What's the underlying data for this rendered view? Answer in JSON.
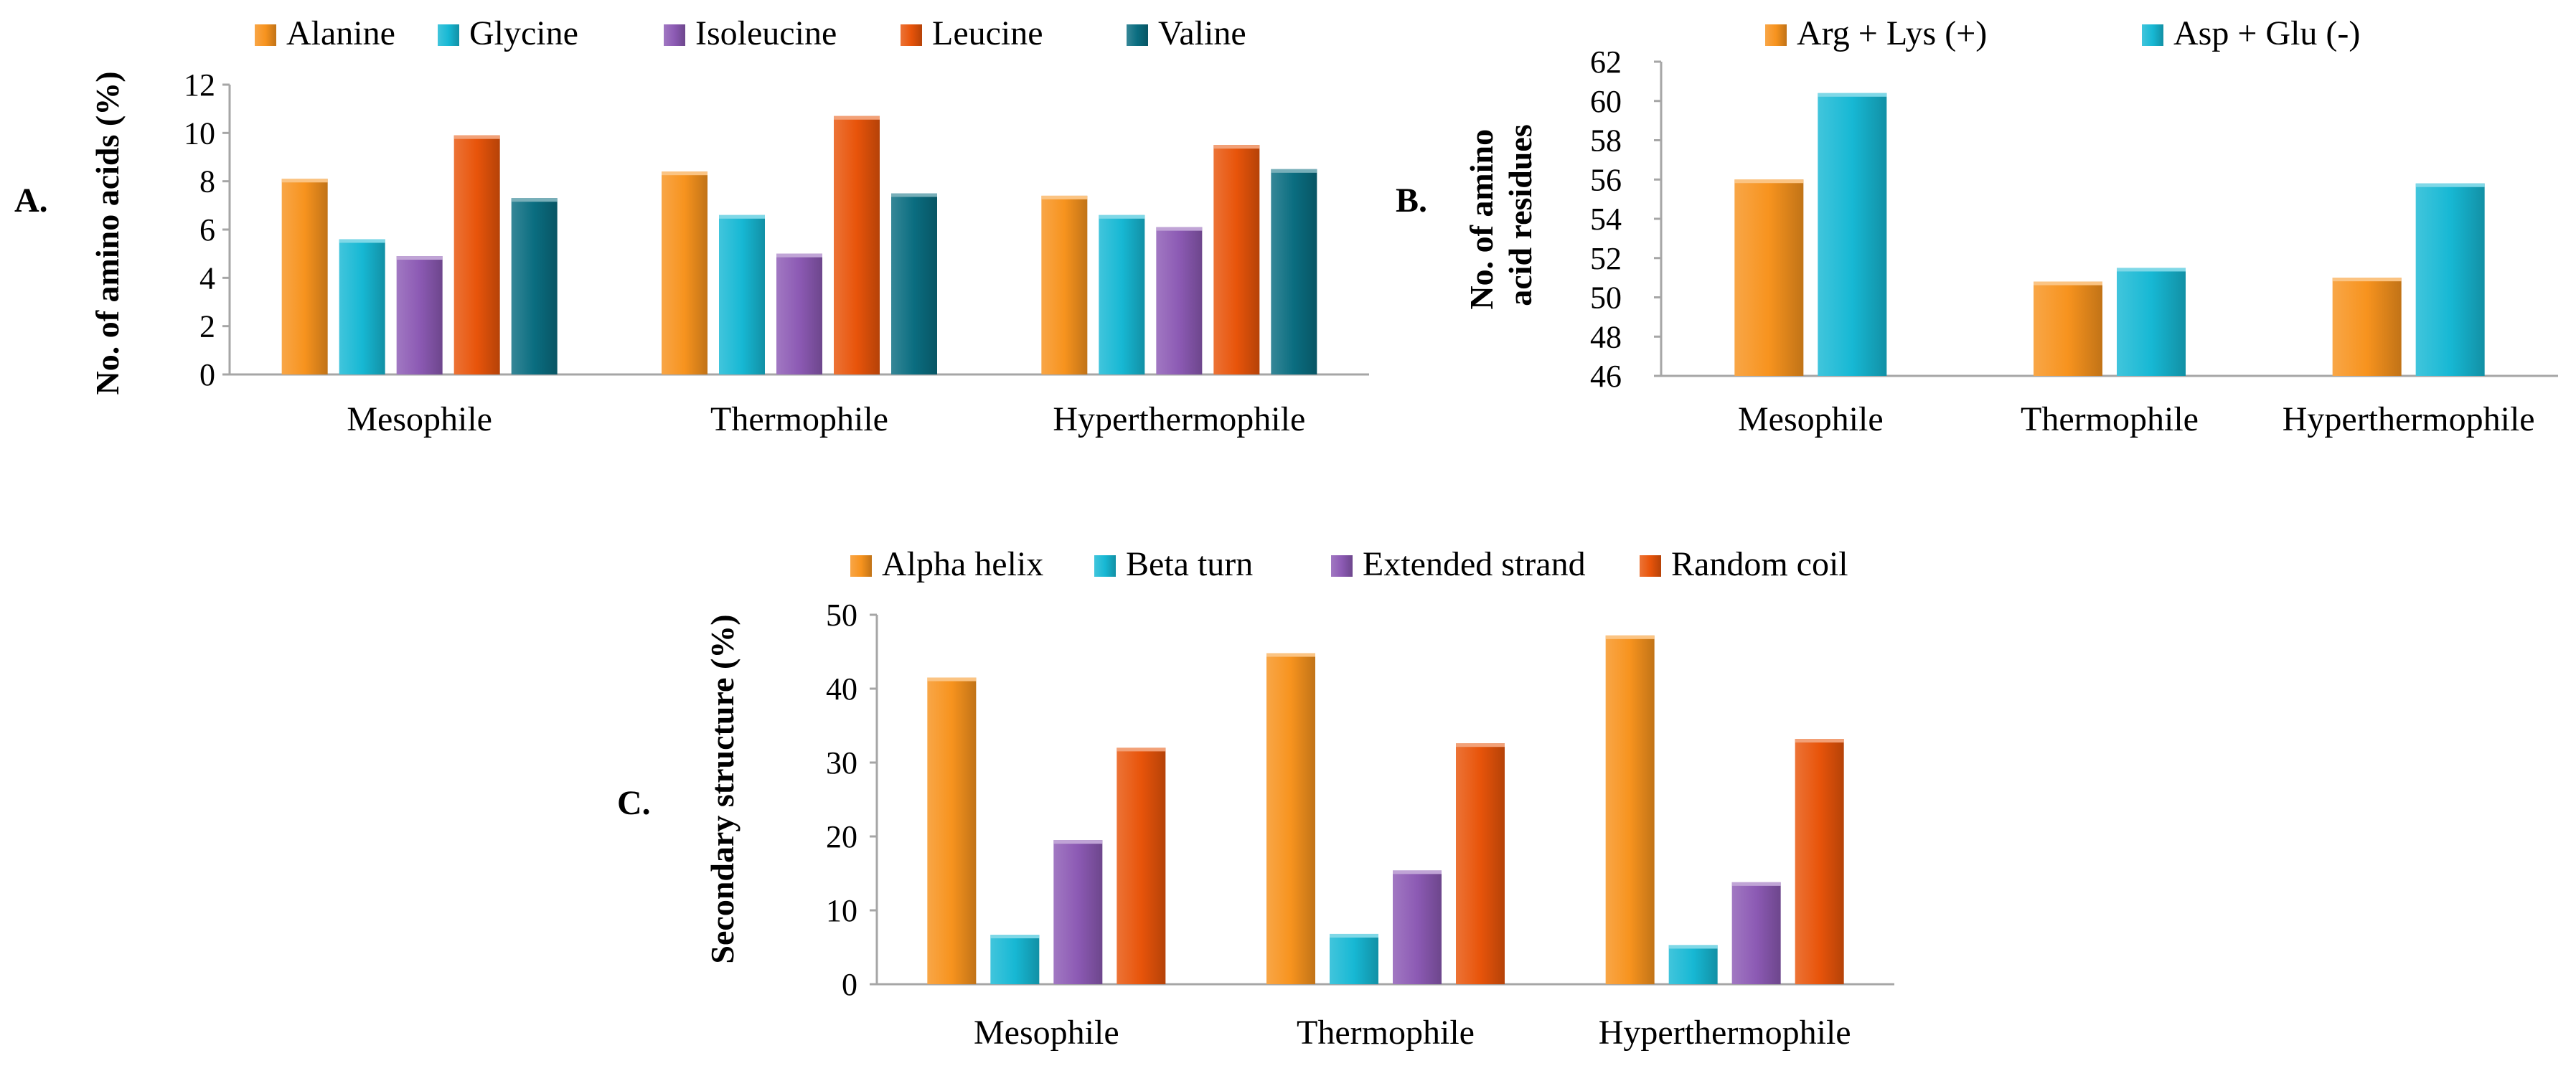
{
  "chart_data": [
    {
      "id": "A",
      "panel_label": "A.",
      "type": "bar",
      "ylabel": "No. of amino acids (%)",
      "categories": [
        "Mesophile",
        "Thermophile",
        "Hyperthermophile"
      ],
      "ylim": [
        0,
        12
      ],
      "yticks": [
        0,
        2,
        4,
        6,
        8,
        10,
        12
      ],
      "legend_position": "top",
      "series": [
        {
          "name": "Alanine",
          "values": [
            8.1,
            8.4,
            7.4
          ]
        },
        {
          "name": "Glycine",
          "values": [
            5.6,
            6.6,
            6.6
          ]
        },
        {
          "name": "Isoleucine",
          "values": [
            4.9,
            5.0,
            6.1
          ]
        },
        {
          "name": "Leucine",
          "values": [
            9.9,
            10.7,
            9.5
          ]
        },
        {
          "name": "Valine",
          "values": [
            7.3,
            7.5,
            8.5
          ]
        }
      ]
    },
    {
      "id": "B",
      "panel_label": "B.",
      "type": "bar",
      "ylabel": "No. of amino acid residues",
      "ylabel_lines": [
        "No. of amino",
        "acid residues"
      ],
      "categories": [
        "Mesophile",
        "Thermophile",
        "Hyperthermophile"
      ],
      "ylim": [
        46,
        62
      ],
      "yticks": [
        46,
        48,
        50,
        52,
        54,
        56,
        58,
        60,
        62
      ],
      "legend_position": "top",
      "series": [
        {
          "name": "Arg + Lys (+)",
          "values": [
            56.0,
            50.8,
            51.0
          ]
        },
        {
          "name": "Asp + Glu (-)",
          "values": [
            60.4,
            51.5,
            55.8
          ]
        }
      ]
    },
    {
      "id": "C",
      "panel_label": "C.",
      "type": "bar",
      "ylabel": "Secondary structure (%)",
      "categories": [
        "Mesophile",
        "Thermophile",
        "Hyperthermophile"
      ],
      "ylim": [
        0,
        50
      ],
      "yticks": [
        0,
        10,
        20,
        30,
        40,
        50
      ],
      "legend_position": "top",
      "series": [
        {
          "name": "Alpha helix",
          "values": [
            41.5,
            44.8,
            47.2
          ]
        },
        {
          "name": "Beta turn",
          "values": [
            6.7,
            6.8,
            5.3
          ]
        },
        {
          "name": "Extended strand",
          "values": [
            19.5,
            15.4,
            13.8
          ]
        },
        {
          "name": "Random coil",
          "values": [
            32.0,
            32.6,
            33.2
          ]
        }
      ]
    }
  ],
  "colors": {
    "Alanine": "#f7931e",
    "Glycine": "#17b8d4",
    "Isoleucine": "#8c5ab4",
    "Leucine": "#e8540a",
    "Valine": "#0a6d80",
    "Arg + Lys (+)": "#f7931e",
    "Asp + Glu (-)": "#17b8d4",
    "Alpha helix": "#f7931e",
    "Beta turn": "#17b8d4",
    "Extended strand": "#8c5ab4",
    "Random coil": "#e8540a"
  }
}
